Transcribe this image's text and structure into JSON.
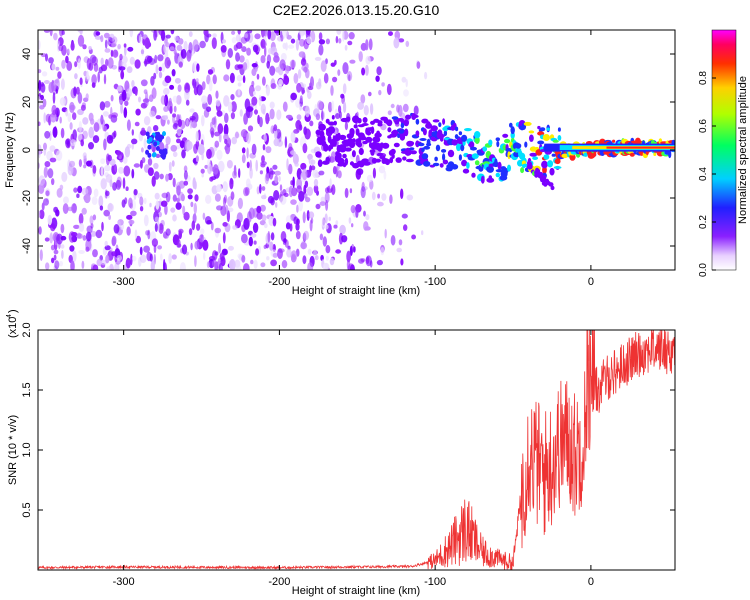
{
  "title": "C2E2.2026.013.15.20.G10",
  "chart_data": [
    {
      "type": "heatmap",
      "title": "C2E2.2026.013.15.20.G10",
      "xlabel": "Height of straight line (km)",
      "ylabel": "Frequency (Hz)",
      "xlim": [
        -355,
        54
      ],
      "ylim": [
        -50,
        50
      ],
      "xticks": [
        -300,
        -200,
        -100,
        0
      ],
      "yticks": [
        -40,
        -20,
        0,
        20,
        40
      ],
      "ridge": [
        {
          "x": -280,
          "y": 2
        },
        {
          "x": -170,
          "y": 4
        },
        {
          "x": -140,
          "y": 3
        },
        {
          "x": -120,
          "y": 6
        },
        {
          "x": -100,
          "y": 3
        },
        {
          "x": -80,
          "y": 0
        },
        {
          "x": -60,
          "y": -5
        },
        {
          "x": -50,
          "y": 2
        },
        {
          "x": -40,
          "y": 1
        },
        {
          "x": -30,
          "y": -1
        },
        {
          "x": -20,
          "y": 0
        },
        {
          "x": 0,
          "y": 0
        },
        {
          "x": 10,
          "y": 1
        },
        {
          "x": 54,
          "y": 1
        }
      ],
      "colorbar": {
        "label": "Normalized spectral amplitude",
        "range": [
          0,
          1
        ],
        "ticks": [
          0.0,
          0.2,
          0.4,
          0.6,
          0.8
        ],
        "tick_labels": [
          "0.0",
          "0.2",
          "0.4",
          "0.6",
          "0.8"
        ],
        "colors": [
          "#ffffff",
          "#7f00ff",
          "#0000ff",
          "#00ffff",
          "#00ff00",
          "#ffff00",
          "#ff0000",
          "#ff00ff"
        ]
      }
    },
    {
      "type": "line",
      "xlabel": "Height of straight line (km)",
      "ylabel": "SNR (10 * v/v)",
      "y_exponent_label": "(x10",
      "y_exponent_power": "4",
      "y_exponent_close": ")",
      "xlim": [
        -355,
        54
      ],
      "ylim": [
        0,
        2.0
      ],
      "xticks": [
        -300,
        -200,
        -100,
        0
      ],
      "yticks": [
        0.5,
        1.0,
        1.5,
        2.0
      ],
      "ytick_labels": [
        "0.5",
        "1.0",
        "1.5",
        "2.0"
      ],
      "line_color": "#ee3333",
      "x": [
        -355,
        -300,
        -200,
        -115,
        -100,
        -90,
        -80,
        -70,
        -60,
        -50,
        -45,
        -40,
        -35,
        -30,
        -25,
        -20,
        -15,
        -10,
        -5,
        0,
        5,
        10,
        20,
        30,
        40,
        54
      ],
      "y": [
        0.02,
        0.025,
        0.02,
        0.03,
        0.08,
        0.2,
        0.35,
        0.15,
        0.1,
        0.05,
        0.6,
        1.0,
        0.9,
        0.8,
        0.9,
        1.05,
        1.1,
        0.95,
        1.1,
        1.5,
        1.5,
        1.6,
        1.7,
        1.8,
        1.85,
        1.82
      ]
    }
  ]
}
